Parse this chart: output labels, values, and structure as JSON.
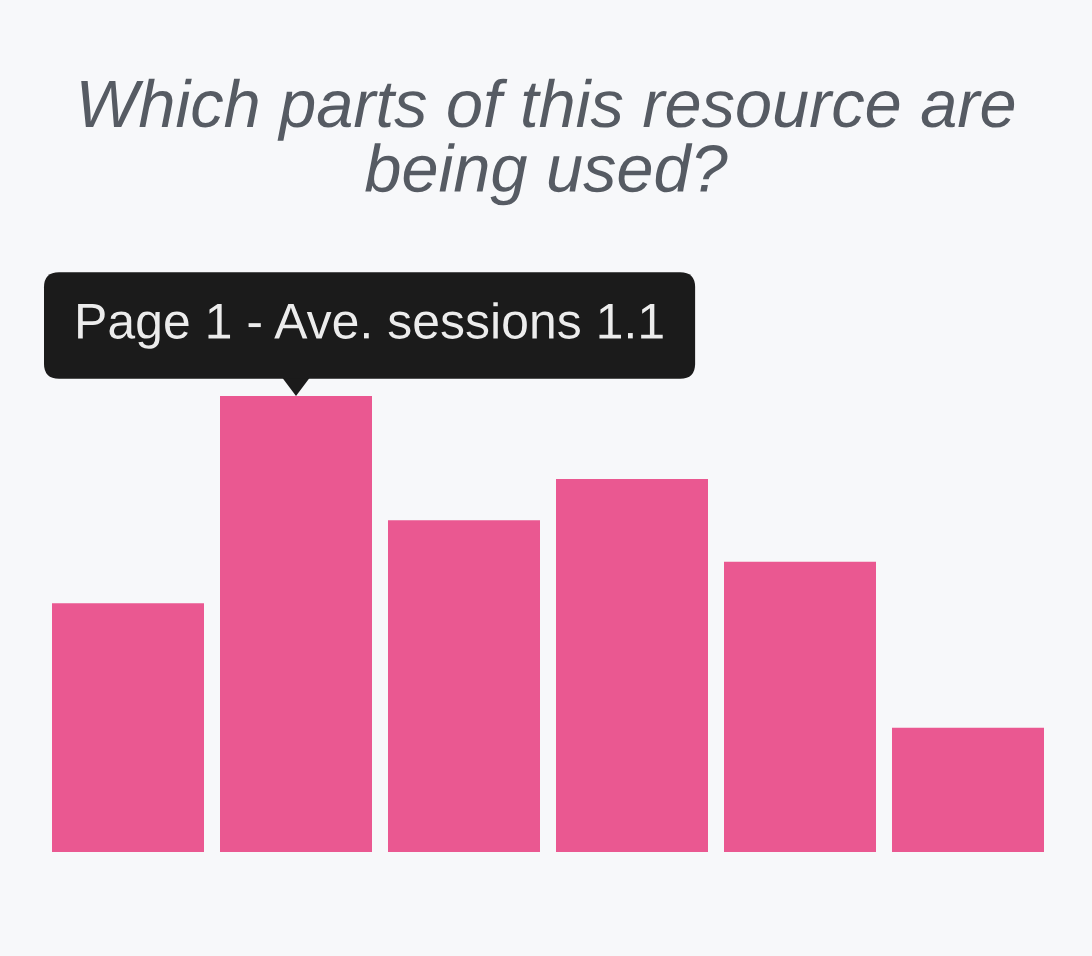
{
  "chart_data": {
    "type": "bar",
    "title": "Which parts of this resource are being used?",
    "categories": [
      null,
      null,
      null,
      null,
      null,
      null
    ],
    "values": [
      0.6,
      1.1,
      0.8,
      0.9,
      0.7,
      0.3
    ],
    "color": "#ea5891",
    "value_labels": [
      null,
      "Page 1 - Ave. sessions 1.1",
      null,
      null,
      null,
      null
    ]
  }
}
